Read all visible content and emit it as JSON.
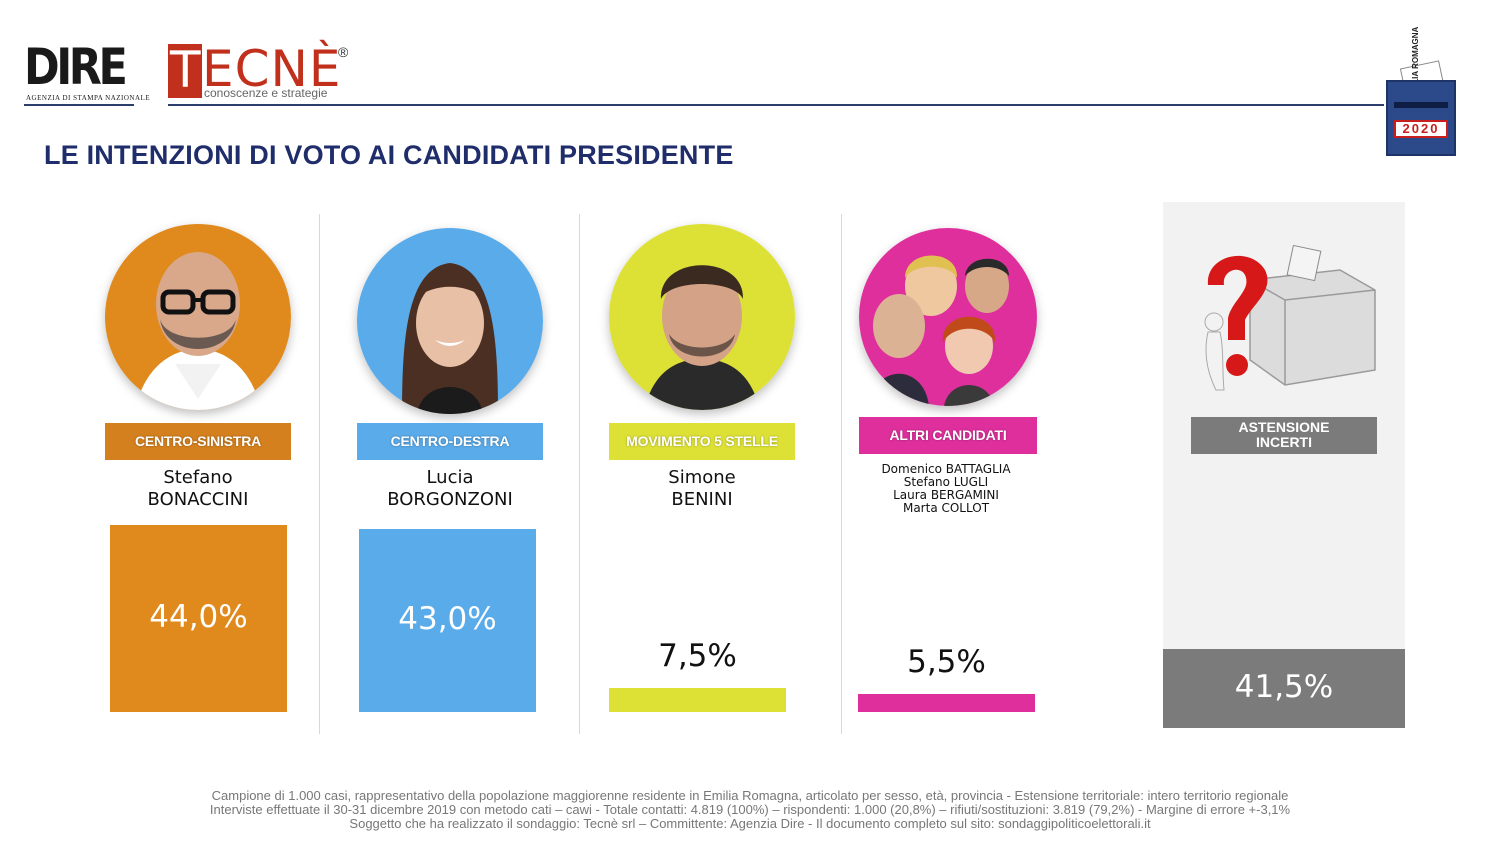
{
  "brand": {
    "dire_logo": "DIRE",
    "dire_tagline": "AGENZIA DI STAMPA NAZIONALE",
    "tecne_logo": "TECNÈ",
    "tecne_registered": "®",
    "tecne_tagline": "conoscenze e strategie",
    "badge_region": "EMILIA ROMAGNA",
    "badge_year": "2020"
  },
  "title": "LE INTENZIONI DI VOTO AI CANDIDATI PRESIDENTE",
  "colors": {
    "centro_sinistra": "#e08a1e",
    "centro_destra": "#5aabea",
    "m5s": "#dde136",
    "altri": "#de2f9c",
    "astensione": "#7b7b7b",
    "title": "#1f2d6b"
  },
  "chart_data": {
    "type": "bar",
    "unit": "%",
    "ylim": [
      0,
      44
    ],
    "categories": [
      "CENTRO-SINISTRA",
      "CENTRO-DESTRA",
      "MOVIMENTO 5 STELLE",
      "ALTRI CANDIDATI",
      "ASTENSIONE INCERTI"
    ],
    "values": [
      44.0,
      43.0,
      7.5,
      5.5,
      41.5
    ],
    "value_labels": [
      "44,0%",
      "43,0%",
      "7,5%",
      "5,5%",
      "41,5%"
    ],
    "candidates": [
      {
        "party": "CENTRO-SINISTRA",
        "first": "Stefano",
        "last": "BONACCINI"
      },
      {
        "party": "CENTRO-DESTRA",
        "first": "Lucia",
        "last": "BORGONZONI"
      },
      {
        "party": "MOVIMENTO 5 STELLE",
        "first": "Simone",
        "last": "BENINI"
      },
      {
        "party": "ALTRI CANDIDATI",
        "names": [
          "Domenico BATTAGLIA",
          "Stefano LUGLI",
          "Laura BERGAMINI",
          "Marta COLLOT"
        ]
      }
    ],
    "astensione_label_line1": "ASTENSIONE",
    "astensione_label_line2": "INCERTI"
  },
  "footnote": {
    "line1": "Campione di 1.000 casi, rappresentativo della popolazione maggiorenne residente in Emilia Romagna, articolato per sesso, età, provincia - Estensione territoriale: intero territorio regionale",
    "line2": "Interviste effettuate il 30-31 dicembre 2019 con metodo cati – cawi - Totale contatti: 4.819 (100%) – rispondenti: 1.000 (20,8%) – rifiuti/sostituzioni: 3.819 (79,2%) - Margine di errore +-3,1%",
    "line3": "Soggetto che ha realizzato il sondaggio: Tecnè srl – Committente: Agenzia Dire - Il documento completo sul sito: sondaggipoliticoelettorali.it"
  }
}
